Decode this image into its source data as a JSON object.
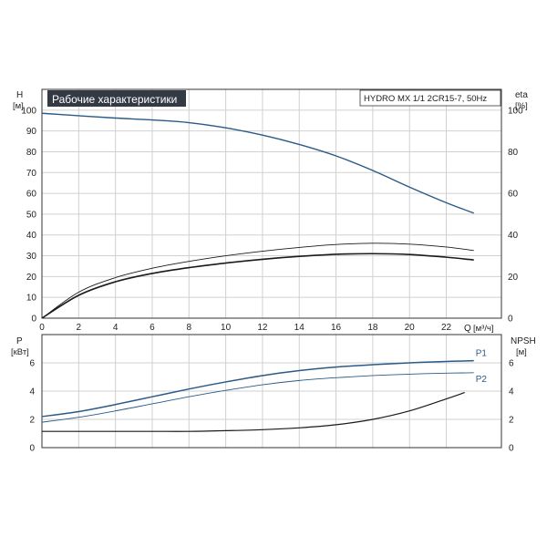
{
  "chart_data": [
    {
      "type": "line",
      "title": "Рабочие характеристики",
      "subtitle": "HYDRO MX 1/1 2CR15-7, 50Hz",
      "xlabel": "Q",
      "xunit": "[м³/ч]",
      "ylabel": "H",
      "yunit": "[м]",
      "y2label": "eta",
      "y2unit": "[%]",
      "xlim": [
        0,
        25
      ],
      "ylim": [
        0,
        110
      ],
      "y2lim": [
        0,
        110
      ],
      "x_ticks": [
        0,
        2,
        4,
        6,
        8,
        10,
        12,
        14,
        16,
        18,
        20,
        22
      ],
      "x_tick_labels": [
        "0",
        "2",
        "4",
        "6",
        "8",
        "10",
        "12",
        "14",
        "16",
        "18",
        "20",
        "22"
      ],
      "y_ticks": [
        0,
        10,
        20,
        30,
        40,
        50,
        60,
        70,
        80,
        90,
        100
      ],
      "y_tick_labels": [
        "0",
        "10",
        "20",
        "30",
        "40",
        "50",
        "60",
        "70",
        "80",
        "90",
        "100"
      ],
      "y2_ticks": [
        0,
        20,
        40,
        60,
        80,
        100
      ],
      "y2_tick_labels": [
        "0",
        "20",
        "40",
        "60",
        "80",
        "100"
      ],
      "grid": true,
      "series": [
        {
          "color": "#2b5a87",
          "width": 1.4,
          "x": [
            0,
            2,
            4,
            6,
            8,
            10,
            12,
            14,
            16,
            18,
            20,
            22,
            23.5
          ],
          "y": [
            98.5,
            97.3,
            96.2,
            95.3,
            94,
            91.5,
            88,
            83.5,
            78,
            71,
            63,
            55.5,
            50.5
          ]
        },
        {
          "color": "#1a1a1a",
          "width": 0.9,
          "x": [
            0,
            2,
            4,
            6,
            8,
            10,
            12,
            14,
            16,
            18,
            20,
            22,
            23.5
          ],
          "y": [
            0,
            12.5,
            19.5,
            24,
            27.3,
            30,
            32.2,
            34,
            35.4,
            36,
            35.6,
            34.2,
            32.5
          ]
        },
        {
          "color": "#1a1a1a",
          "width": 1.6,
          "x": [
            0,
            2,
            4,
            6,
            8,
            10,
            12,
            14,
            16,
            18,
            20,
            22,
            23.5
          ],
          "y": [
            0,
            11,
            17.5,
            21.5,
            24.3,
            26.5,
            28.3,
            29.7,
            30.7,
            31,
            30.6,
            29.3,
            28
          ]
        }
      ]
    },
    {
      "type": "line",
      "ylabel": "P",
      "yunit": "[кВт]",
      "y2label": "NPSH",
      "y2unit": "[м]",
      "xlim": [
        0,
        25
      ],
      "ylim": [
        0,
        8
      ],
      "y2lim": [
        0,
        8
      ],
      "y_ticks": [
        0,
        2,
        4,
        6
      ],
      "y_tick_labels": [
        "0",
        "2",
        "4",
        "6"
      ],
      "y2_ticks": [
        0,
        2,
        4,
        6
      ],
      "y2_tick_labels": [
        "0",
        "2",
        "4",
        "6"
      ],
      "grid": true,
      "series": [
        {
          "name": "P1",
          "color": "#2b5a87",
          "width": 1.5,
          "x": [
            0,
            2,
            4,
            6,
            8,
            10,
            12,
            14,
            16,
            18,
            20,
            22,
            23.5
          ],
          "y": [
            2.2,
            2.55,
            3.05,
            3.6,
            4.15,
            4.65,
            5.1,
            5.45,
            5.7,
            5.87,
            6,
            6.1,
            6.15
          ]
        },
        {
          "name": "P2",
          "color": "#2b5a87",
          "width": 0.9,
          "x": [
            0,
            2,
            4,
            6,
            8,
            10,
            12,
            14,
            16,
            18,
            20,
            22,
            23.5
          ],
          "y": [
            1.8,
            2.15,
            2.6,
            3.1,
            3.6,
            4.05,
            4.45,
            4.75,
            4.95,
            5.1,
            5.2,
            5.27,
            5.3
          ]
        },
        {
          "color": "#1a1a1a",
          "width": 1.2,
          "x": [
            0,
            2,
            4,
            6,
            8,
            10,
            12,
            14,
            16,
            18,
            20,
            22,
            23
          ],
          "y": [
            1.15,
            1.15,
            1.15,
            1.15,
            1.15,
            1.2,
            1.27,
            1.4,
            1.62,
            2,
            2.6,
            3.45,
            3.9
          ]
        }
      ]
    }
  ]
}
